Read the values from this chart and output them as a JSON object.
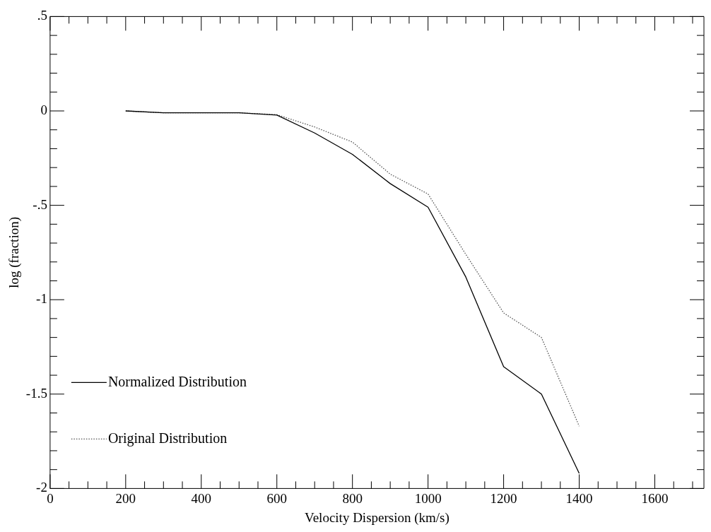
{
  "chart_data": {
    "type": "line",
    "xlabel": "Velocity Dispersion (km/s)",
    "ylabel": "log (fraction)",
    "x": [
      200,
      300,
      400,
      500,
      600,
      700,
      800,
      900,
      1000,
      1100,
      1200,
      1300,
      1400
    ],
    "series": [
      {
        "name": "Normalized Distribution",
        "color": "#000000",
        "line_style": "solid",
        "values": [
          0.0,
          -0.01,
          -0.01,
          -0.01,
          -0.022,
          -0.117,
          -0.23,
          -0.385,
          -0.51,
          -0.88,
          -1.355,
          -1.5,
          -1.92
        ]
      },
      {
        "name": "Original Distribution",
        "color": "#555555",
        "line_style": "dotted",
        "values": [
          0.0,
          -0.01,
          -0.01,
          -0.01,
          -0.02,
          -0.085,
          -0.165,
          -0.335,
          -0.44,
          -0.76,
          -1.07,
          -1.2,
          -1.67
        ]
      }
    ],
    "xlim": [
      0,
      1730
    ],
    "xticks": [
      0,
      {
        "value": 50,
        "label": null
      },
      {
        "value": 100,
        "label": null
      },
      {
        "value": 150,
        "label": null
      },
      200,
      {
        "value": 250,
        "label": null
      },
      {
        "value": 300,
        "label": null
      },
      {
        "value": 350,
        "label": null
      },
      400,
      {
        "value": 450,
        "label": null
      },
      {
        "value": 500,
        "label": null
      },
      {
        "value": 550,
        "label": null
      },
      600,
      {
        "value": 650,
        "label": null
      },
      {
        "value": 700,
        "label": null
      },
      {
        "value": 750,
        "label": null
      },
      800,
      {
        "value": 850,
        "label": null
      },
      {
        "value": 900,
        "label": null
      },
      {
        "value": 950,
        "label": null
      },
      1000,
      {
        "value": 1050,
        "label": null
      },
      {
        "value": 1100,
        "label": null
      },
      {
        "value": 1150,
        "label": null
      },
      1200,
      {
        "value": 1250,
        "label": null
      },
      {
        "value": 1300,
        "label": null
      },
      {
        "value": 1350,
        "label": null
      },
      1400,
      {
        "value": 1450,
        "label": null
      },
      {
        "value": 1500,
        "label": null
      },
      {
        "value": 1550,
        "label": null
      },
      1600,
      {
        "value": 1650,
        "label": null
      },
      {
        "value": 1700,
        "label": null
      }
    ],
    "ylim": [
      -2,
      0.5
    ],
    "yticks": [
      -2,
      {
        "value": -1.9,
        "label": null
      },
      {
        "value": -1.8,
        "label": null
      },
      {
        "value": -1.7,
        "label": null
      },
      {
        "value": -1.6,
        "label": null
      },
      -1.5,
      {
        "value": -1.4,
        "label": null
      },
      {
        "value": -1.3,
        "label": null
      },
      {
        "value": -1.2,
        "label": null
      },
      {
        "value": -1.1,
        "label": null
      },
      -1,
      {
        "value": -0.9,
        "label": null
      },
      {
        "value": -0.8,
        "label": null
      },
      {
        "value": -0.7,
        "label": null
      },
      {
        "value": -0.6,
        "label": null
      },
      {
        "value": -0.5,
        "label": "-.5"
      },
      {
        "value": -0.4,
        "label": null
      },
      {
        "value": -0.3,
        "label": null
      },
      {
        "value": -0.2,
        "label": null
      },
      {
        "value": -0.1,
        "label": null
      },
      0,
      {
        "value": 0.1,
        "label": null
      },
      {
        "value": 0.2,
        "label": null
      },
      {
        "value": 0.3,
        "label": null
      },
      {
        "value": 0.4,
        "label": null
      },
      {
        "value": 0.5,
        "label": ".5"
      }
    ],
    "legend": "bottom left",
    "marker": "none"
  }
}
